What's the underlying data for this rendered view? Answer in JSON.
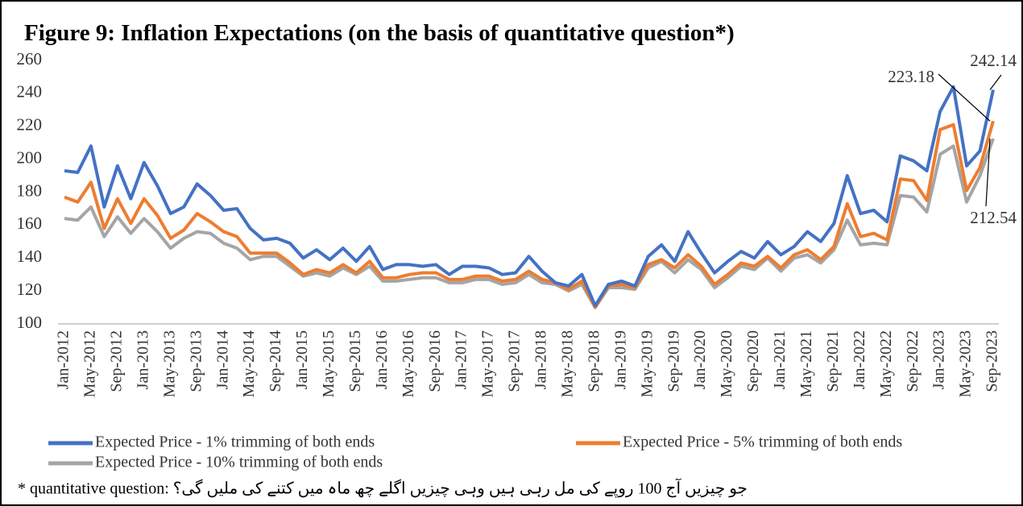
{
  "chart_data": {
    "type": "line",
    "title": "Figure 9: Inflation Expectations (on the basis of quantitative question*)",
    "categories": [
      "Jan-2012",
      null,
      "May-2012",
      null,
      "Sep-2012",
      null,
      "Jan-2013",
      null,
      "May-2013",
      null,
      "Sep-2013",
      null,
      "Jan-2014",
      null,
      "May-2014",
      null,
      "Sep-2014",
      null,
      "Jan-2015",
      null,
      "May-2015",
      null,
      "Sep-2015",
      null,
      "Jan-2016",
      null,
      "May-2016",
      null,
      "Sep-2016",
      null,
      "Jan-2017",
      null,
      "May-2017",
      null,
      "Sep-2017",
      null,
      "Jan-2018",
      null,
      "May-2018",
      null,
      "Sep-2018",
      null,
      "Jan-2019",
      null,
      "May-2019",
      null,
      "Sep-2019",
      null,
      "Jan-2020",
      null,
      "May-2020",
      null,
      "Sep-2020",
      null,
      "Jan-2021",
      null,
      "May-2021",
      null,
      "Sep-2021",
      null,
      "Jan-2022",
      null,
      "May-2022",
      null,
      "Sep-2022",
      null,
      "Jan-2023",
      null,
      "May-2023",
      null,
      "Sep-2023"
    ],
    "series": [
      {
        "name": "Expected Price - 1% trimming of both ends",
        "color": "#4472c4",
        "values": [
          193,
          192,
          208,
          171,
          196,
          176,
          198,
          184,
          167,
          171,
          185,
          178,
          169,
          170,
          158,
          151,
          152,
          149,
          140,
          145,
          139,
          146,
          138,
          147,
          133,
          136,
          136,
          135,
          136,
          130,
          135,
          135,
          134,
          130,
          131,
          141,
          132,
          125,
          123,
          130,
          111,
          124,
          126,
          123,
          141,
          148,
          138,
          156,
          143,
          131,
          138,
          144,
          140,
          150,
          142,
          147,
          156,
          150,
          161,
          190,
          167,
          169,
          162,
          202,
          199,
          193,
          229,
          244,
          196,
          205,
          242.14
        ]
      },
      {
        "name": "Expected Price - 5% trimming of both ends",
        "color": "#ed7d31",
        "values": [
          177,
          174,
          186,
          158,
          176,
          161,
          176,
          166,
          152,
          157,
          167,
          162,
          156,
          153,
          143,
          143,
          143,
          137,
          130,
          133,
          131,
          136,
          131,
          138,
          128,
          128,
          130,
          131,
          131,
          127,
          127,
          129,
          129,
          126,
          127,
          132,
          127,
          125,
          121,
          126,
          110,
          123,
          124,
          122,
          136,
          139,
          134,
          142,
          135,
          124,
          130,
          137,
          135,
          141,
          134,
          142,
          145,
          139,
          147,
          173,
          153,
          155,
          151,
          188,
          187,
          175,
          218,
          221,
          181,
          195,
          223.18
        ]
      },
      {
        "name": "Expected Price - 10% trimming of both ends",
        "color": "#a5a5a5",
        "values": [
          164,
          163,
          171,
          153,
          165,
          155,
          164,
          156,
          146,
          152,
          156,
          155,
          149,
          146,
          139,
          141,
          141,
          135,
          129,
          131,
          129,
          134,
          130,
          135,
          126,
          126,
          127,
          128,
          128,
          125,
          125,
          127,
          127,
          124,
          125,
          130,
          125,
          124,
          120,
          124,
          110,
          122,
          122,
          121,
          134,
          138,
          131,
          139,
          133,
          122,
          128,
          135,
          133,
          140,
          132,
          140,
          142,
          137,
          145,
          163,
          148,
          149,
          148,
          178,
          177,
          168,
          203,
          208,
          174,
          190,
          212.54
        ]
      }
    ],
    "ylim": [
      100,
      260
    ],
    "yticks": [
      100,
      120,
      140,
      160,
      180,
      200,
      220,
      240,
      260
    ],
    "grid": false,
    "legend": "bottom",
    "note": "* quantitative question: جو چیزیں آج 100 روپے کی مل رہی ہیں وہی چیزیں اگلے چھ ماہ میں کتنے کی ملیں گی؟"
  }
}
